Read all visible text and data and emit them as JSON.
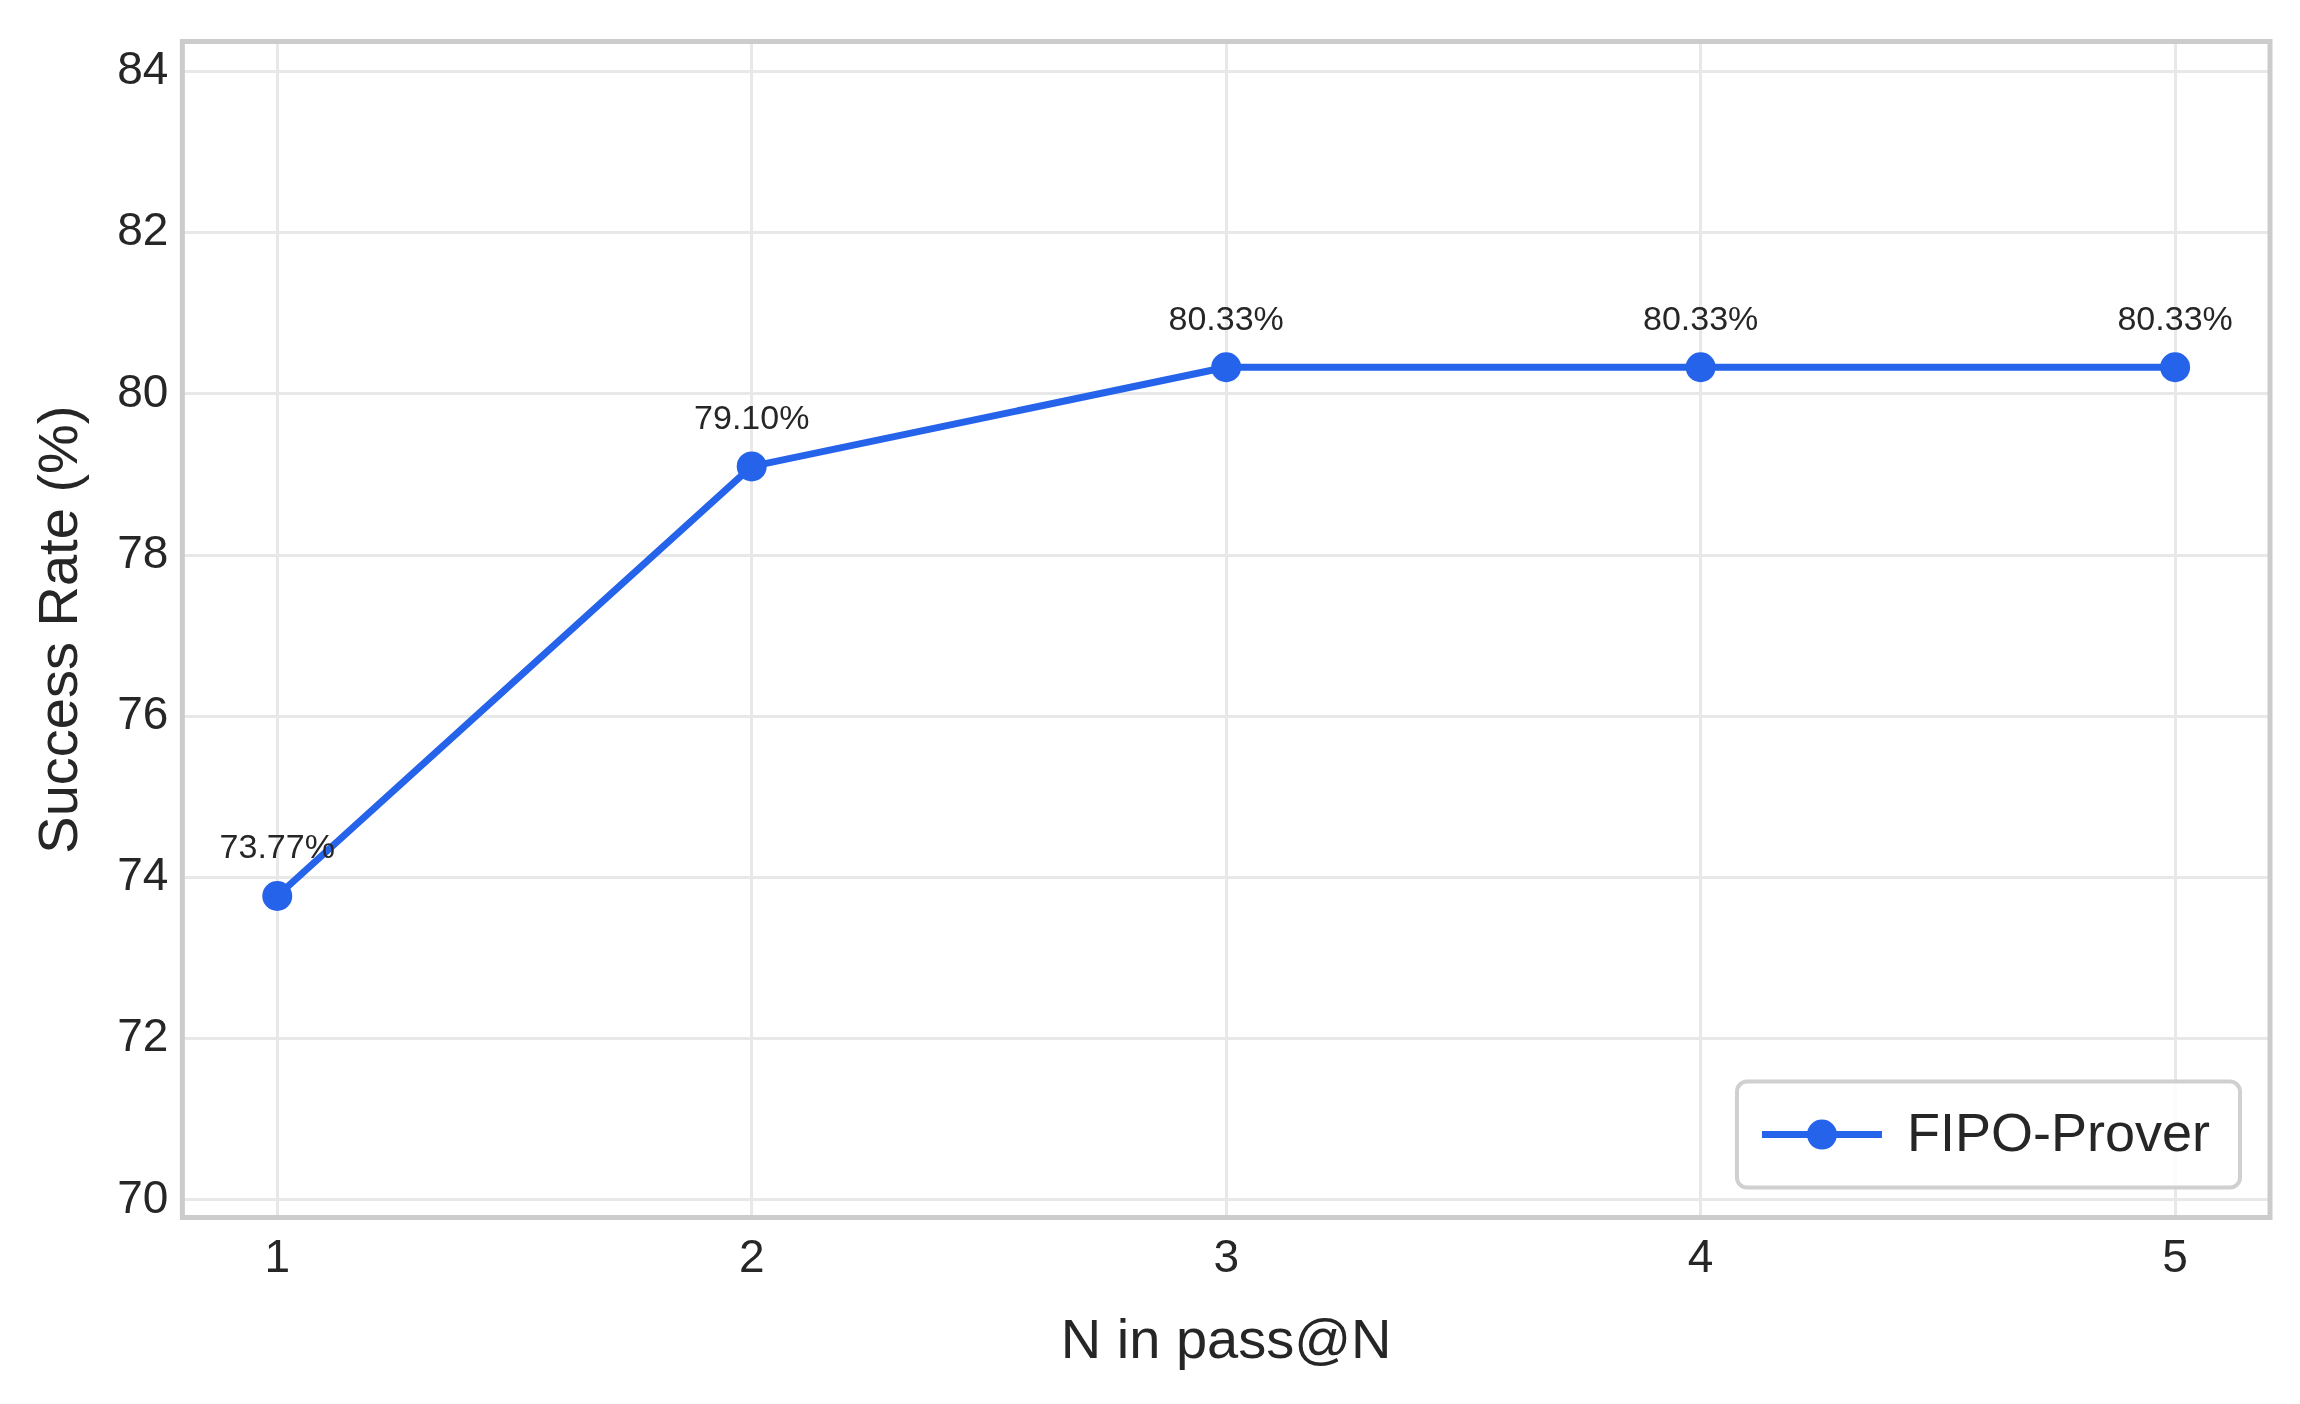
{
  "chart_data": {
    "type": "line",
    "xlabel": "N in pass@N",
    "ylabel": "Success Rate (%)",
    "x": [
      1,
      2,
      3,
      4,
      5
    ],
    "series": [
      {
        "name": "FIPO-Prover",
        "color": "#2563eb",
        "values": [
          73.77,
          79.1,
          80.33,
          80.33,
          80.33
        ],
        "value_labels": [
          "73.77%",
          "79.10%",
          "80.33%",
          "80.33%",
          "80.33%"
        ]
      }
    ],
    "xlim": [
      0.8,
      5.2
    ],
    "xticks": [
      1,
      2,
      3,
      4,
      5
    ],
    "ylim": [
      69.78,
      84.37
    ],
    "yticks": [
      70,
      72,
      74,
      76,
      78,
      80,
      82,
      84
    ],
    "grid": true,
    "legend": "bottom right",
    "marker": "circle",
    "line_style": "solid"
  }
}
